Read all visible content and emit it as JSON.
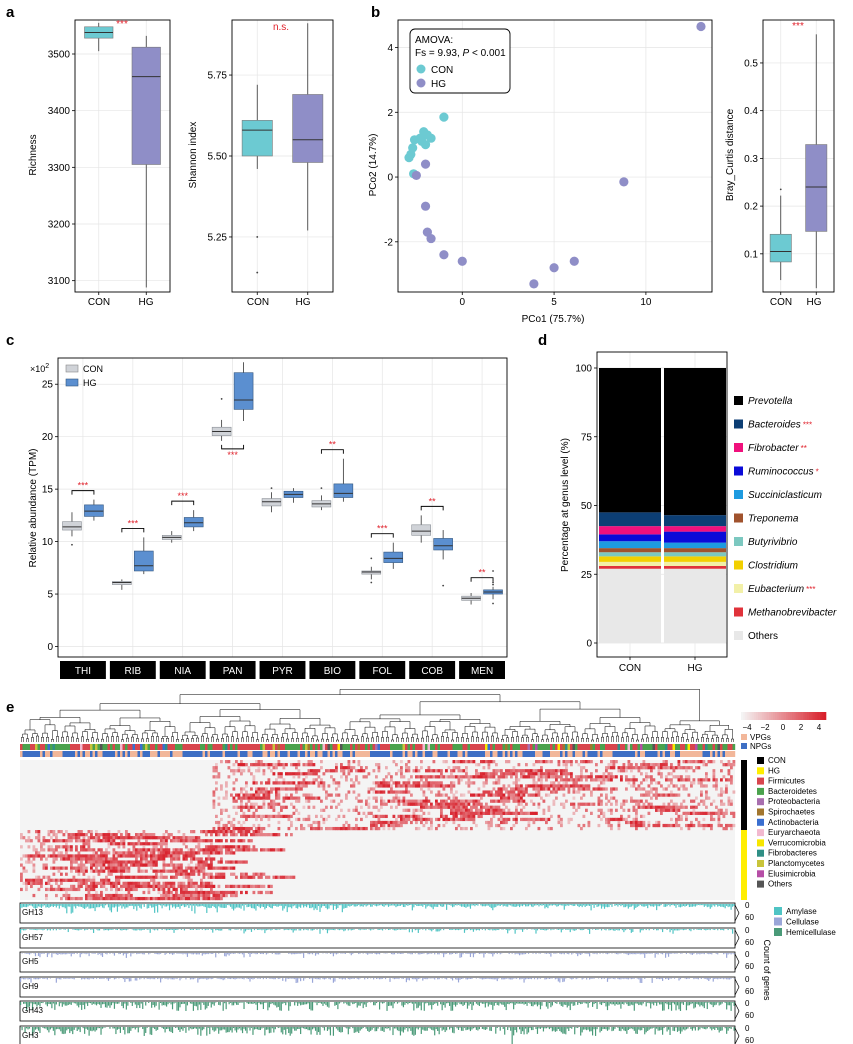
{
  "colors": {
    "con": "#6ccad2",
    "hg": "#8f8ec7",
    "con_grey": "#d0d3d8",
    "hg_blue": "#5b8fd0",
    "sig": "#e0202a",
    "heat_low": "#f4f4f4",
    "heat_high": "#d81f2a"
  },
  "panel_labels": [
    "a",
    "b",
    "c",
    "d",
    "e"
  ],
  "panel_a": {
    "richness": {
      "ylabel": "Richness",
      "sig": "***",
      "categories": [
        "CON",
        "HG"
      ],
      "yticks": [
        3100,
        3200,
        3300,
        3400,
        3500
      ],
      "ylim": [
        3080,
        3560
      ],
      "boxes": [
        {
          "name": "CON",
          "min": 3505,
          "q1": 3528,
          "median": 3538,
          "q3": 3548,
          "max": 3555
        },
        {
          "name": "HG",
          "min": 3088,
          "q1": 3305,
          "median": 3460,
          "q3": 3512,
          "max": 3532
        }
      ],
      "outliers": []
    },
    "shannon": {
      "ylabel": "Shannon index",
      "sig": "n.s.",
      "categories": [
        "CON",
        "HG"
      ],
      "yticks": [
        "5.25",
        "5.50",
        "5.75"
      ],
      "ylim": [
        5.08,
        5.92
      ],
      "boxes": [
        {
          "name": "CON",
          "min": 5.46,
          "q1": 5.5,
          "median": 5.58,
          "q3": 5.61,
          "max": 5.72
        },
        {
          "name": "HG",
          "min": 5.27,
          "q1": 5.48,
          "median": 5.55,
          "q3": 5.69,
          "max": 5.91
        }
      ],
      "outliers": [
        {
          "x": "CON",
          "y": 5.25
        },
        {
          "x": "CON",
          "y": 5.14
        }
      ]
    }
  },
  "panel_b": {
    "pcoa": {
      "type": "scatter",
      "xlabel": "PCo1 (75.7%)",
      "ylabel": "PCo2 (14.7%)",
      "xticks": [
        0,
        5,
        10
      ],
      "yticks": [
        -2,
        0,
        2,
        4
      ],
      "xlim": [
        -3.5,
        13.6
      ],
      "ylim": [
        -3.55,
        4.85
      ],
      "legend": {
        "title": "AMOVA:",
        "stat_prefix": "Fs = 9.93, ",
        "stat_p": "P",
        "stat_suffix": " < 0.001"
      },
      "series": [
        {
          "name": "CON",
          "points": [
            [
              -2.1,
              1.4
            ],
            [
              -1.9,
              1.3
            ],
            [
              -1.7,
              1.2
            ],
            [
              -2.3,
              1.2
            ],
            [
              -2.6,
              1.15
            ],
            [
              -1.0,
              1.85
            ],
            [
              -2.2,
              1.1
            ],
            [
              -2.7,
              0.9
            ],
            [
              -2.8,
              0.7
            ],
            [
              -2.9,
              0.6
            ],
            [
              -2.0,
              1.0
            ],
            [
              -2.65,
              0.1
            ]
          ]
        },
        {
          "name": "HG",
          "points": [
            [
              13.0,
              4.65
            ],
            [
              8.8,
              -0.15
            ],
            [
              -2.0,
              0.4
            ],
            [
              -2.5,
              0.05
            ],
            [
              -2.0,
              -0.9
            ],
            [
              -1.9,
              -1.7
            ],
            [
              -1.7,
              -1.9
            ],
            [
              -1.0,
              -2.4
            ],
            [
              0.0,
              -2.6
            ],
            [
              3.9,
              -3.3
            ],
            [
              5.0,
              -2.8
            ],
            [
              6.1,
              -2.6
            ]
          ]
        }
      ]
    },
    "bray": {
      "ylabel": "Bray_Curtis distance",
      "sig": "***",
      "categories": [
        "CON",
        "HG"
      ],
      "yticks": [
        "0.1",
        "0.2",
        "0.3",
        "0.4",
        "0.5"
      ],
      "ylim": [
        0.02,
        0.59
      ],
      "boxes": [
        {
          "name": "CON",
          "min": 0.045,
          "q1": 0.083,
          "median": 0.105,
          "q3": 0.141,
          "max": 0.222
        },
        {
          "name": "HG",
          "min": 0.028,
          "q1": 0.147,
          "median": 0.24,
          "q3": 0.329,
          "max": 0.56
        }
      ],
      "outliers": [
        {
          "x": "CON",
          "y": 0.235
        }
      ]
    }
  },
  "panel_c": {
    "type": "box",
    "ylabel": "Relative abundance (TPM)",
    "multiplier": "×10",
    "multiplier_exp": "2",
    "yticks": [
      0,
      5,
      10,
      15,
      20,
      25
    ],
    "ylim": [
      -1,
      27.5
    ],
    "legend": [
      "CON",
      "HG"
    ],
    "categories": [
      "THI",
      "RIB",
      "NIA",
      "PAN",
      "PYR",
      "BIO",
      "FOL",
      "COB",
      "MEN"
    ],
    "sig": [
      "***",
      "***",
      "***",
      "***",
      "",
      "**",
      "***",
      "**",
      "**"
    ],
    "con": [
      {
        "min": 10.5,
        "q1": 11.1,
        "median": 11.4,
        "q3": 11.9,
        "max": 12.8,
        "out": [
          9.7
        ]
      },
      {
        "min": 5.4,
        "q1": 5.9,
        "median": 6.1,
        "q3": 6.2,
        "max": 6.4,
        "out": []
      },
      {
        "min": 9.9,
        "q1": 10.2,
        "median": 10.4,
        "q3": 10.6,
        "max": 11.0,
        "out": []
      },
      {
        "min": 19.6,
        "q1": 20.1,
        "median": 20.5,
        "q3": 20.9,
        "max": 21.6,
        "out": [
          23.6
        ]
      },
      {
        "min": 12.8,
        "q1": 13.4,
        "median": 13.8,
        "q3": 14.1,
        "max": 14.7,
        "out": [
          15.1
        ]
      },
      {
        "min": 13.0,
        "q1": 13.3,
        "median": 13.6,
        "q3": 13.9,
        "max": 14.4,
        "out": [
          15.1
        ]
      },
      {
        "min": 6.4,
        "q1": 6.9,
        "median": 7.1,
        "q3": 7.2,
        "max": 7.6,
        "out": [
          8.4,
          6.1
        ]
      },
      {
        "min": 9.9,
        "q1": 10.6,
        "median": 11.0,
        "q3": 11.6,
        "max": 12.5,
        "out": []
      },
      {
        "min": 4.0,
        "q1": 4.4,
        "median": 4.6,
        "q3": 4.8,
        "max": 5.1,
        "out": []
      }
    ],
    "hg": [
      {
        "min": 12.0,
        "q1": 12.4,
        "median": 12.9,
        "q3": 13.5,
        "max": 14.0,
        "out": []
      },
      {
        "min": 6.9,
        "q1": 7.2,
        "median": 7.7,
        "q3": 9.1,
        "max": 10.4,
        "out": []
      },
      {
        "min": 11.0,
        "q1": 11.4,
        "median": 11.8,
        "q3": 12.3,
        "max": 13.0,
        "out": []
      },
      {
        "min": 21.5,
        "q1": 22.6,
        "median": 23.5,
        "q3": 26.1,
        "max": 27.1,
        "out": []
      },
      {
        "min": 13.7,
        "q1": 14.2,
        "median": 14.5,
        "q3": 14.8,
        "max": 15.1,
        "out": []
      },
      {
        "min": 13.8,
        "q1": 14.2,
        "median": 14.6,
        "q3": 15.5,
        "max": 17.9,
        "out": []
      },
      {
        "min": 7.4,
        "q1": 8.0,
        "median": 8.4,
        "q3": 9.0,
        "max": 9.9,
        "out": []
      },
      {
        "min": 8.3,
        "q1": 9.2,
        "median": 9.6,
        "q3": 10.3,
        "max": 11.1,
        "out": [
          5.8
        ]
      },
      {
        "min": 4.5,
        "q1": 5.0,
        "median": 5.2,
        "q3": 5.4,
        "max": 5.7,
        "out": [
          5.9,
          7.2,
          6.1,
          4.1
        ]
      }
    ]
  },
  "panel_d": {
    "type": "stacked_bar",
    "ylabel": "Percentage at genus level (%)",
    "categories": [
      "CON",
      "HG"
    ],
    "yticks": [
      0,
      25,
      50,
      75,
      100
    ],
    "ylim": [
      0,
      100
    ],
    "series": [
      {
        "name": "Others",
        "color": "#e8e8e8",
        "sig": "",
        "values": [
          27.0,
          27.0
        ]
      },
      {
        "name": "Methanobrevibacter",
        "color": "#e0323a",
        "sig": "",
        "values": [
          1.0,
          1.0
        ]
      },
      {
        "name": "Eubacterium",
        "color": "#f2f0a8",
        "sig": "***",
        "values": [
          1.5,
          1.5
        ]
      },
      {
        "name": "Clostridium",
        "color": "#f2d000",
        "sig": "",
        "values": [
          2.0,
          2.0
        ]
      },
      {
        "name": "Butyrivibrio",
        "color": "#7cc8c0",
        "sig": "",
        "values": [
          1.5,
          1.5
        ]
      },
      {
        "name": "Treponema",
        "color": "#a0522d",
        "sig": "",
        "values": [
          1.5,
          1.5
        ]
      },
      {
        "name": "Succiniclasticum",
        "color": "#1e9be0",
        "sig": "",
        "values": [
          2.5,
          2.0
        ]
      },
      {
        "name": "Ruminococcus",
        "color": "#0a0ad8",
        "sig": "*",
        "values": [
          2.5,
          4.0
        ]
      },
      {
        "name": "Fibrobacter",
        "color": "#f0107c",
        "sig": "**",
        "values": [
          3.0,
          2.0
        ]
      },
      {
        "name": "Bacteroides",
        "color": "#0c3e74",
        "sig": "***",
        "values": [
          5.0,
          4.0
        ]
      },
      {
        "name": "Prevotella",
        "color": "#000000",
        "sig": "",
        "values": [
          52.5,
          53.5
        ]
      }
    ]
  },
  "panel_e": {
    "color_scale": {
      "ticks": [
        "−4",
        "−2",
        "0",
        "2",
        "4"
      ]
    },
    "track_legend": [
      {
        "label": "VPGs",
        "color": "#f2b79a"
      },
      {
        "label": "NPGs",
        "color": "#3e6fc4"
      }
    ],
    "group_legend": [
      {
        "label": "CON",
        "color": "#000000"
      },
      {
        "label": "HG",
        "color": "#ffee00"
      }
    ],
    "phylum_legend": [
      {
        "label": "Firmicutes",
        "color": "#d8454d"
      },
      {
        "label": "Bacteroidetes",
        "color": "#4aa24d"
      },
      {
        "label": "Proteobacteria",
        "color": "#a86eae"
      },
      {
        "label": "Spirochaetes",
        "color": "#a2762e"
      },
      {
        "label": "Actinobacteria",
        "color": "#3a6fd0"
      },
      {
        "label": "Euryarchaeota",
        "color": "#f2b9cf"
      },
      {
        "label": "Verrucomicrobia",
        "color": "#f7e600"
      },
      {
        "label": "Fibrobacteres",
        "color": "#2f8f85"
      },
      {
        "label": "Planctomycetes",
        "color": "#c8c43a"
      },
      {
        "label": "Elusimicrobia",
        "color": "#b64ea6"
      },
      {
        "label": "Others",
        "color": "#555555"
      }
    ],
    "enzyme_legend": [
      {
        "label": "Amylase",
        "color": "#4fc4c4"
      },
      {
        "label": "Cellulase",
        "color": "#9aa6d8"
      },
      {
        "label": "Hemicellulase",
        "color": "#4a9a78"
      }
    ],
    "gene_tracks": [
      {
        "name": "GH13",
        "enzyme": "Amylase"
      },
      {
        "name": "GH57",
        "enzyme": "Amylase"
      },
      {
        "name": "GH5",
        "enzyme": "Cellulase"
      },
      {
        "name": "GH9",
        "enzyme": "Cellulase"
      },
      {
        "name": "GH43",
        "enzyme": "Hemicellulase"
      },
      {
        "name": "GH3",
        "enzyme": "Hemicellulase"
      }
    ],
    "track_ticks": [
      "0",
      "60"
    ],
    "track_axis_label": "Count of genes"
  }
}
